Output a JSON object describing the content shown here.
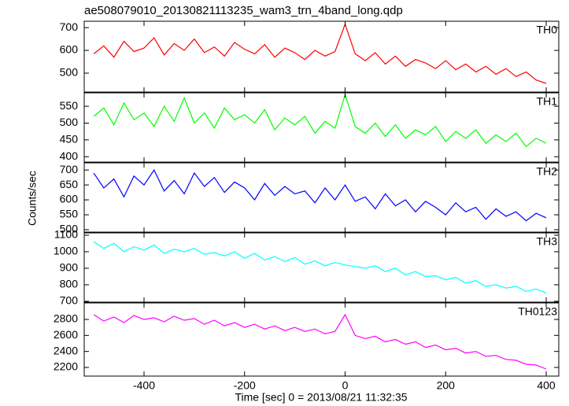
{
  "title": "ae508079010_20130821113235_wam3_trn_4band_long.qdp",
  "ylabel": "Counts/sec",
  "xlabel": "Time [sec] 0 = 2013/08/21 11:32:35",
  "chart_data": [
    {
      "type": "line",
      "label": "TH0",
      "color": "#ff0000",
      "x": [
        -500,
        -480,
        -460,
        -440,
        -420,
        -400,
        -380,
        -360,
        -340,
        -320,
        -300,
        -280,
        -260,
        -240,
        -220,
        -200,
        -180,
        -160,
        -140,
        -120,
        -100,
        -80,
        -60,
        -40,
        -20,
        0,
        20,
        40,
        60,
        80,
        100,
        120,
        140,
        160,
        180,
        200,
        220,
        240,
        260,
        280,
        300,
        320,
        340,
        360,
        380,
        400
      ],
      "values": [
        585,
        620,
        570,
        640,
        595,
        610,
        655,
        580,
        630,
        600,
        650,
        590,
        615,
        575,
        635,
        605,
        585,
        625,
        570,
        610,
        590,
        560,
        600,
        575,
        595,
        715,
        585,
        555,
        590,
        540,
        575,
        530,
        560,
        545,
        520,
        555,
        515,
        540,
        505,
        530,
        495,
        520,
        485,
        505,
        470,
        455
      ],
      "xlim": [
        -519,
        425
      ],
      "xticks": [
        -400,
        -200,
        0,
        200,
        400
      ],
      "ylim": [
        417,
        728
      ],
      "yticks": [
        500,
        600,
        700
      ]
    },
    {
      "type": "line",
      "label": "TH1",
      "color": "#00ff00",
      "x": [
        -500,
        -480,
        -460,
        -440,
        -420,
        -400,
        -380,
        -360,
        -340,
        -320,
        -300,
        -280,
        -260,
        -240,
        -220,
        -200,
        -180,
        -160,
        -140,
        -120,
        -100,
        -80,
        -60,
        -40,
        -20,
        0,
        20,
        40,
        60,
        80,
        100,
        120,
        140,
        160,
        180,
        200,
        220,
        240,
        260,
        280,
        300,
        320,
        340,
        360,
        380,
        400
      ],
      "values": [
        520,
        545,
        495,
        560,
        510,
        530,
        490,
        550,
        505,
        575,
        500,
        530,
        485,
        545,
        510,
        525,
        500,
        540,
        480,
        515,
        495,
        520,
        470,
        505,
        485,
        585,
        490,
        470,
        500,
        460,
        495,
        455,
        480,
        465,
        490,
        445,
        475,
        455,
        480,
        440,
        465,
        445,
        470,
        430,
        455,
        440
      ],
      "xlim": [
        -519,
        425
      ],
      "xticks": [
        -400,
        -200,
        0,
        200,
        400
      ],
      "ylim": [
        384,
        590
      ],
      "yticks": [
        400,
        450,
        500,
        550
      ]
    },
    {
      "type": "line",
      "label": "TH2",
      "color": "#0000ff",
      "x": [
        -500,
        -480,
        -460,
        -440,
        -420,
        -400,
        -380,
        -360,
        -340,
        -320,
        -300,
        -280,
        -260,
        -240,
        -220,
        -200,
        -180,
        -160,
        -140,
        -120,
        -100,
        -80,
        -60,
        -40,
        -20,
        0,
        20,
        40,
        60,
        80,
        100,
        120,
        140,
        160,
        180,
        200,
        220,
        240,
        260,
        280,
        300,
        320,
        340,
        360,
        380,
        400
      ],
      "values": [
        690,
        640,
        670,
        610,
        680,
        650,
        700,
        630,
        665,
        620,
        690,
        645,
        675,
        625,
        660,
        640,
        600,
        655,
        615,
        645,
        620,
        630,
        590,
        640,
        600,
        650,
        595,
        610,
        570,
        620,
        580,
        600,
        560,
        595,
        575,
        550,
        590,
        560,
        575,
        535,
        570,
        545,
        560,
        530,
        555,
        540
      ],
      "xlim": [
        -519,
        425
      ],
      "xticks": [
        -400,
        -200,
        0,
        200,
        400
      ],
      "ylim": [
        492,
        724
      ],
      "yticks": [
        500,
        550,
        600,
        650,
        700
      ]
    },
    {
      "type": "line",
      "label": "TH3",
      "color": "#00ffff",
      "x": [
        -500,
        -480,
        -460,
        -440,
        -420,
        -400,
        -380,
        -360,
        -340,
        -320,
        -300,
        -280,
        -260,
        -240,
        -220,
        -200,
        -180,
        -160,
        -140,
        -120,
        -100,
        -80,
        -60,
        -40,
        -20,
        0,
        20,
        40,
        60,
        80,
        100,
        120,
        140,
        160,
        180,
        200,
        220,
        240,
        260,
        280,
        300,
        320,
        340,
        360,
        380,
        400
      ],
      "values": [
        1060,
        1020,
        1050,
        1000,
        1030,
        1010,
        1040,
        990,
        1015,
        1000,
        1020,
        985,
        995,
        975,
        1000,
        960,
        990,
        950,
        970,
        940,
        965,
        925,
        945,
        915,
        935,
        920,
        910,
        900,
        915,
        880,
        900,
        860,
        880,
        850,
        855,
        830,
        845,
        810,
        825,
        790,
        800,
        780,
        790,
        760,
        775,
        750
      ],
      "xlim": [
        -519,
        425
      ],
      "xticks": [
        -400,
        -200,
        0,
        200,
        400
      ],
      "ylim": [
        695,
        1114
      ],
      "yticks": [
        700,
        800,
        900,
        1000,
        1100
      ]
    },
    {
      "type": "line",
      "label": "TH0123",
      "color": "#ff00ff",
      "x": [
        -500,
        -480,
        -460,
        -440,
        -420,
        -400,
        -380,
        -360,
        -340,
        -320,
        -300,
        -280,
        -260,
        -240,
        -220,
        -200,
        -180,
        -160,
        -140,
        -120,
        -100,
        -80,
        -60,
        -40,
        -20,
        0,
        20,
        40,
        60,
        80,
        100,
        120,
        140,
        160,
        180,
        200,
        220,
        240,
        260,
        280,
        300,
        320,
        340,
        360,
        380,
        400
      ],
      "values": [
        2860,
        2780,
        2830,
        2760,
        2850,
        2800,
        2820,
        2770,
        2840,
        2790,
        2810,
        2740,
        2790,
        2720,
        2760,
        2700,
        2740,
        2680,
        2720,
        2660,
        2700,
        2650,
        2680,
        2620,
        2650,
        2860,
        2600,
        2560,
        2590,
        2520,
        2550,
        2490,
        2520,
        2450,
        2480,
        2420,
        2440,
        2380,
        2400,
        2340,
        2350,
        2300,
        2290,
        2240,
        2230,
        2180
      ],
      "xlim": [
        -519,
        425
      ],
      "xticks": [
        -400,
        -200,
        0,
        200,
        400
      ],
      "ylim": [
        2092,
        3006
      ],
      "yticks": [
        2200,
        2400,
        2600,
        2800
      ]
    }
  ]
}
